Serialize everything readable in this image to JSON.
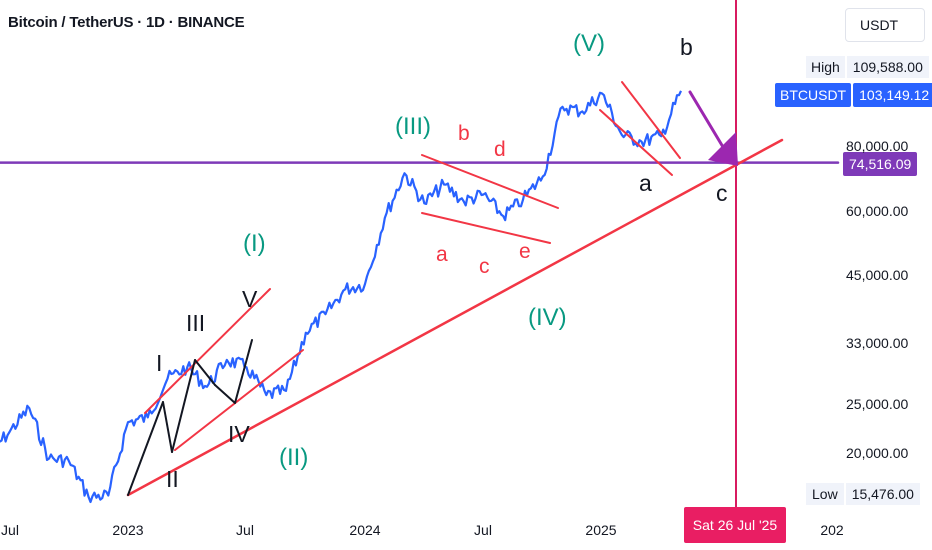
{
  "title": "Bitcoin / TetherUS · 1D · BINANCE",
  "currency_button": "USDT",
  "colors": {
    "series": "#2962ff",
    "trendline": "#f23645",
    "horizontal": "#7e3ab8",
    "vertical": "#d81b60",
    "arrow": "#9c27b0",
    "wave_major": "#089981",
    "wave_minor": "#f23645",
    "wave_sub": "#131722"
  },
  "price_tags": {
    "high_label": "High",
    "high_value": "109,588.00",
    "last_label": "BTCUSDT",
    "last_value": "103,149.12",
    "level_value": "74,516.09",
    "low_label": "Low",
    "low_value": "15,476.00"
  },
  "date_marker": "Sat 26 Jul '25",
  "annotations": {
    "major": [
      "(I)",
      "(II)",
      "(III)",
      "(IV)",
      "(V)"
    ],
    "minor": [
      "a",
      "b",
      "c",
      "d",
      "e"
    ],
    "sub": [
      "I",
      "II",
      "III",
      "IV",
      "V"
    ],
    "correction": [
      "a",
      "b",
      "c"
    ]
  },
  "chart_data": {
    "type": "line",
    "title": "Bitcoin / TetherUS · 1D · BINANCE",
    "y_scale": "log",
    "y_ticks": [
      "80,000.00",
      "60,000.00",
      "45,000.00",
      "33,000.00",
      "25,000.00",
      "20,000.00"
    ],
    "x_ticks": [
      "Jul",
      "2023",
      "Jul",
      "2024",
      "Jul",
      "2025",
      "202"
    ],
    "series": [
      {
        "x": [
          "2022-06",
          "2022-07",
          "2022-08",
          "2022-09",
          "2022-10",
          "2022-11",
          "2022-12",
          "2023-01",
          "2023-02",
          "2023-03",
          "2023-04",
          "2023-05",
          "2023-06",
          "2023-07",
          "2023-08",
          "2023-09",
          "2023-10",
          "2023-11",
          "2023-12",
          "2024-01",
          "2024-02",
          "2024-03",
          "2024-04",
          "2024-05",
          "2024-06",
          "2024-07",
          "2024-08",
          "2024-09",
          "2024-10",
          "2024-11",
          "2024-12",
          "2025-01",
          "2025-02",
          "2025-03",
          "2025-04",
          "2025-05"
        ],
        "values": [
          20000,
          22000,
          24500,
          19500,
          19300,
          16400,
          16500,
          23000,
          23500,
          28000,
          29500,
          27000,
          30500,
          29500,
          26000,
          26500,
          34500,
          37500,
          42000,
          43000,
          58000,
          71000,
          62000,
          67500,
          62500,
          64500,
          58500,
          63000,
          70000,
          96000,
          94000,
          102000,
          84500,
          82000,
          84000,
          103149
        ]
      }
    ],
    "horizontal_level": 74516.09,
    "high": 109588,
    "low": 15476,
    "last": 103149.12
  }
}
